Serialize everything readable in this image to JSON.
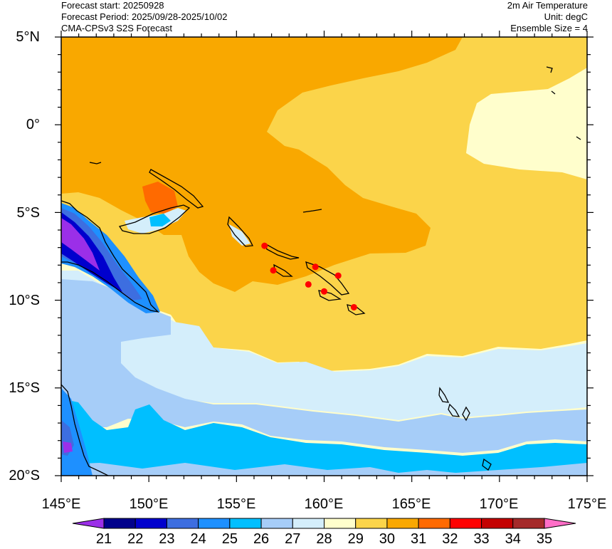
{
  "header": {
    "left_lines": [
      "Forecast start: 20250928",
      "Forecast Period: 2025/09/28-2025/10/02",
      "CMA-CPSv3 S2S Forecast"
    ],
    "right_lines": [
      "2m Air Temperature",
      "Unit: degC",
      "Ensemble Size = 4"
    ]
  },
  "map": {
    "lat_labels": [
      "5°N",
      "0°",
      "5°S",
      "10°S",
      "15°S",
      "20°S"
    ],
    "lon_labels": [
      "145°E",
      "150°E",
      "155°E",
      "160°E",
      "165°E",
      "170°E",
      "175°E"
    ],
    "lat_range": [
      -20,
      5
    ],
    "lon_range": [
      145,
      175
    ],
    "marker_color": "#ff0000"
  },
  "colorbar": {
    "levels": [
      "21",
      "22",
      "23",
      "24",
      "25",
      "26",
      "27",
      "28",
      "29",
      "30",
      "31",
      "32",
      "33",
      "34",
      "35"
    ],
    "colors": [
      "#9b2fe8",
      "#00008b",
      "#0000cd",
      "#3d6ee0",
      "#1e90ff",
      "#00bfff",
      "#a6cdf8",
      "#d4eefb",
      "#fffecc",
      "#fbd44a",
      "#f9a800",
      "#ff6a00",
      "#ff0000",
      "#c40000",
      "#a52a2a",
      "#ff6ec7"
    ]
  }
}
